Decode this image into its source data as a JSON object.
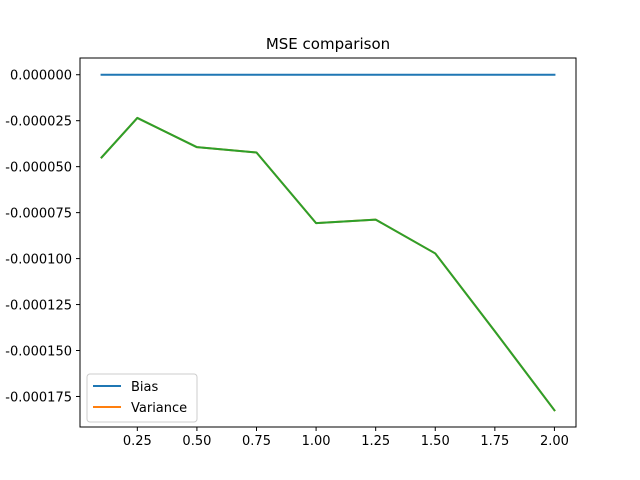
{
  "chart_data": {
    "type": "line",
    "title": "MSE comparison",
    "xlabel": "",
    "ylabel": "",
    "x": [
      0.1,
      0.25,
      0.5,
      0.75,
      1.0,
      1.25,
      1.5,
      1.75,
      2.0
    ],
    "series": [
      {
        "name": "Bias",
        "color": "#1f77b4",
        "values": [
          0,
          0,
          0,
          0,
          0,
          0,
          0,
          0,
          0
        ]
      },
      {
        "name": "Variance",
        "color": "#ff7f0e",
        "values": [
          -4.5e-05,
          -2.35e-05,
          -3.94e-05,
          -4.23e-05,
          -8.07e-05,
          -7.88e-05,
          -9.72e-05,
          -0.0001395,
          -0.0001825
        ]
      },
      {
        "color": "#2ca02c",
        "values": [
          -4.5e-05,
          -2.35e-05,
          -3.94e-05,
          -4.23e-05,
          -8.07e-05,
          -7.88e-05,
          -9.72e-05,
          -0.0001395,
          -0.0001825
        ]
      }
    ],
    "xlim": [
      0.0095,
      2.0905
    ],
    "ylim": [
      -0.0001916,
      9.1e-06
    ],
    "xticks": [
      0.25,
      0.5,
      0.75,
      1.0,
      1.25,
      1.5,
      1.75,
      2.0
    ],
    "xtick_labels": [
      "0.25",
      "0.50",
      "0.75",
      "1.00",
      "1.25",
      "1.50",
      "1.75",
      "2.00"
    ],
    "yticks": [
      0,
      -2.5e-05,
      -5e-05,
      -7.5e-05,
      -0.0001,
      -0.000125,
      -0.00015,
      -0.000175
    ],
    "ytick_labels": [
      "0.000000",
      "-0.000025",
      "-0.000050",
      "-0.000075",
      "-0.000100",
      "-0.000125",
      "-0.000150",
      "-0.000175"
    ],
    "grid": false,
    "legend_position": "lower-left"
  }
}
